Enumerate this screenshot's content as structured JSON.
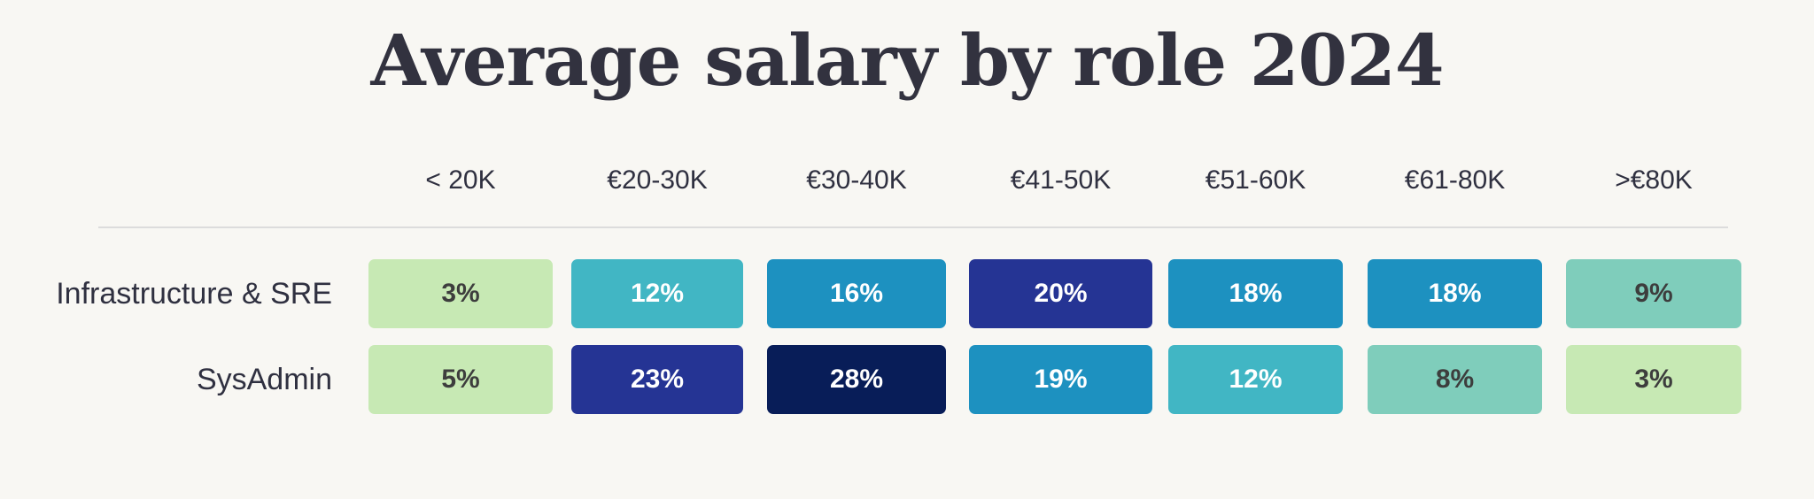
{
  "colors": {
    "background": "#f8f7f3",
    "text": "#2f3040",
    "scale": [
      "#c7e9b4",
      "#7fcdbb",
      "#41b6c4",
      "#1d91c0",
      "#253494",
      "#081d58"
    ]
  },
  "chart_data": {
    "type": "heatmap",
    "title": "Average salary by role 2024",
    "columns": [
      "< 20K",
      "€20-30K",
      "€30-40K",
      "€41-50K",
      "€51-60K",
      "€61-80K",
      ">€80K"
    ],
    "rows": [
      {
        "name": "Infrastructure & SRE",
        "values": [
          3,
          12,
          16,
          20,
          18,
          18,
          9
        ]
      },
      {
        "name": "SysAdmin",
        "values": [
          5,
          23,
          28,
          19,
          12,
          8,
          3
        ]
      }
    ],
    "value_unit": "%",
    "legend": "none",
    "grid": false
  }
}
